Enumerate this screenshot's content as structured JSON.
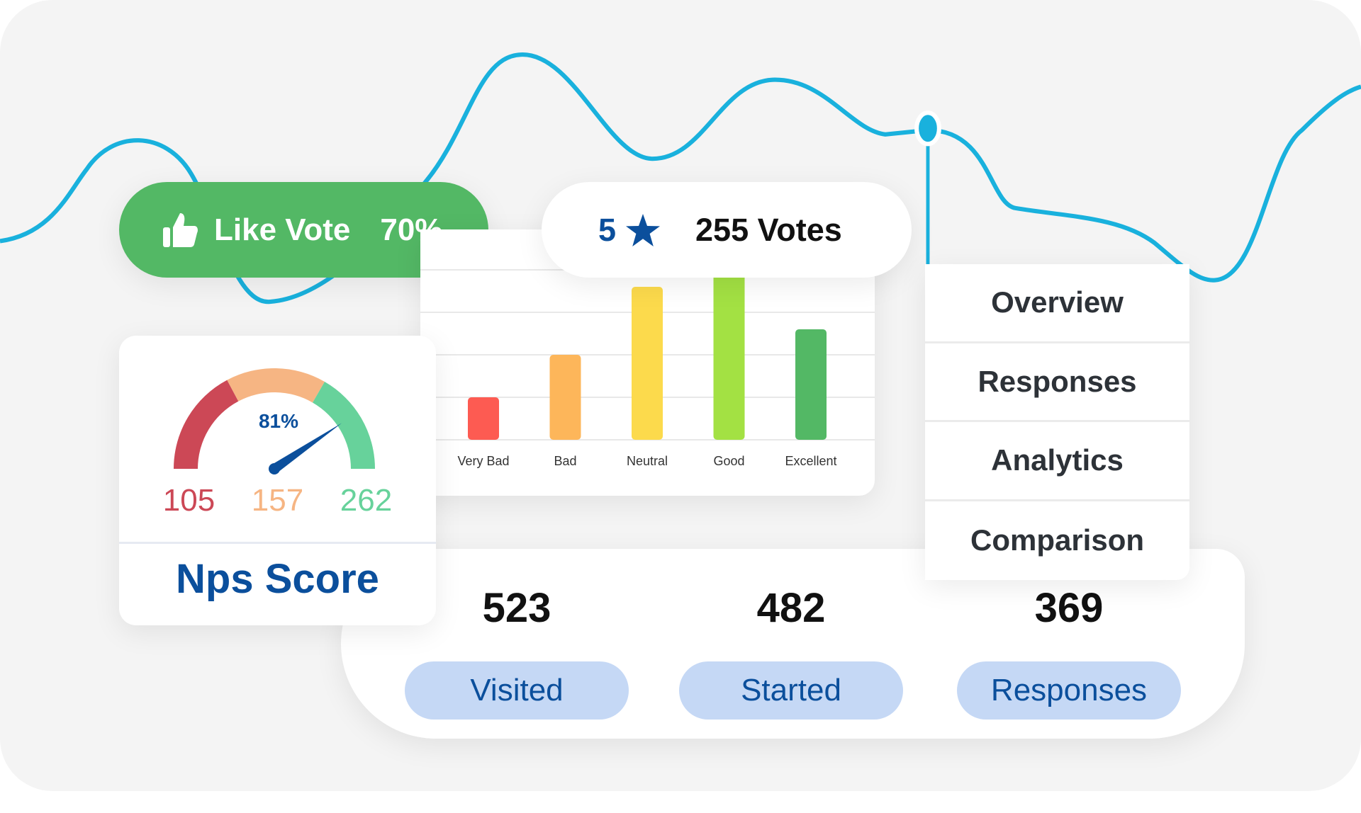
{
  "like_vote": {
    "label": "Like Vote",
    "percent": "70%",
    "icon": "thumbs-up-icon"
  },
  "rating": {
    "stars": "5",
    "icon": "star-icon",
    "votes": "255 Votes"
  },
  "chart_data": {
    "type": "bar",
    "categories": [
      "Very Bad",
      "Bad",
      "Neutral",
      "Good",
      "Excellent"
    ],
    "values": [
      1,
      2,
      3.6,
      4,
      2.6
    ],
    "colors": [
      "#fd5b52",
      "#fdb65a",
      "#fcda4c",
      "#a3e143",
      "#53b865"
    ],
    "ylim": [
      0,
      4
    ],
    "grid": true
  },
  "nps": {
    "percent": "81%",
    "percent_value": 81,
    "low": "105",
    "mid": "157",
    "high": "262",
    "title": "Nps Score",
    "colors": {
      "low": "#cc4856",
      "mid": "#f6b583",
      "high": "#67d29b",
      "needle": "#0b4f9c"
    }
  },
  "nav": {
    "items": [
      {
        "label": "Overview"
      },
      {
        "label": "Responses"
      },
      {
        "label": "Analytics"
      },
      {
        "label": "Comparison"
      }
    ]
  },
  "stats": [
    {
      "value": "523",
      "label": "Visited"
    },
    {
      "value": "482",
      "label": "Started"
    },
    {
      "value": "369",
      "label": "Responses"
    }
  ],
  "colors": {
    "line": "#19b1dd",
    "accent": "#0b4f9c"
  }
}
